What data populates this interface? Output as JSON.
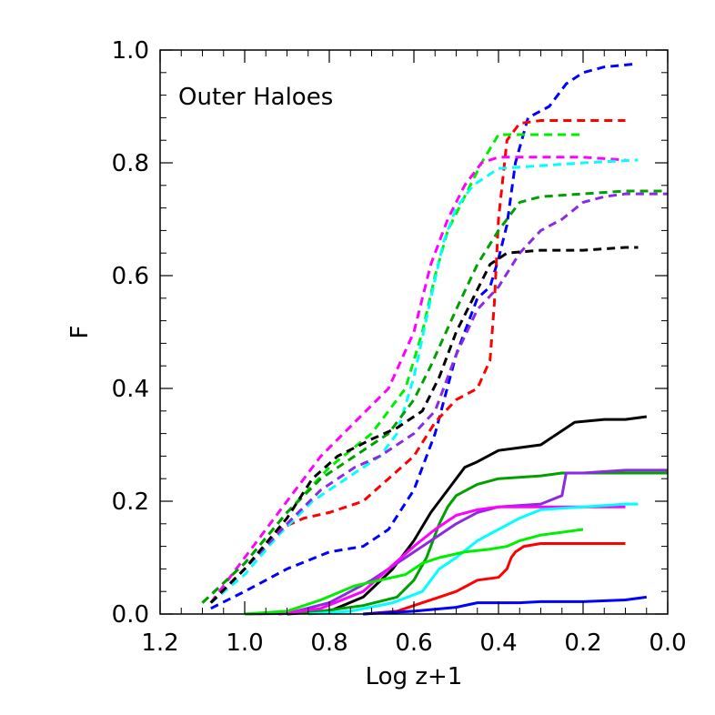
{
  "chart_data": {
    "type": "line",
    "annotation": "Outer Haloes",
    "xlabel": "Log z+1",
    "ylabel": "F",
    "xlim": [
      1.2,
      0.0
    ],
    "ylim": [
      0.0,
      1.0
    ],
    "xticks": [
      "1.2",
      "1.0",
      "0.8",
      "0.6",
      "0.4",
      "0.2",
      "0.0"
    ],
    "yticks": [
      "0.0",
      "0.2",
      "0.4",
      "0.6",
      "0.8",
      "1.0"
    ],
    "series": [
      {
        "name": "blue-dashed",
        "color": "#0000ff",
        "style": "dashed",
        "points": [
          [
            1.08,
            0.01
          ],
          [
            1.0,
            0.04
          ],
          [
            0.9,
            0.08
          ],
          [
            0.8,
            0.11
          ],
          [
            0.72,
            0.12
          ],
          [
            0.66,
            0.15
          ],
          [
            0.6,
            0.22
          ],
          [
            0.55,
            0.32
          ],
          [
            0.5,
            0.46
          ],
          [
            0.45,
            0.56
          ],
          [
            0.42,
            0.58
          ],
          [
            0.4,
            0.63
          ],
          [
            0.38,
            0.69
          ],
          [
            0.36,
            0.8
          ],
          [
            0.33,
            0.88
          ],
          [
            0.28,
            0.9
          ],
          [
            0.24,
            0.94
          ],
          [
            0.2,
            0.96
          ],
          [
            0.15,
            0.97
          ],
          [
            0.08,
            0.975
          ]
        ]
      },
      {
        "name": "red-dashed",
        "color": "#ff0000",
        "style": "dashed",
        "points": [
          [
            1.08,
            0.02
          ],
          [
            1.0,
            0.08
          ],
          [
            0.92,
            0.15
          ],
          [
            0.86,
            0.17
          ],
          [
            0.8,
            0.18
          ],
          [
            0.72,
            0.2
          ],
          [
            0.66,
            0.24
          ],
          [
            0.6,
            0.28
          ],
          [
            0.55,
            0.34
          ],
          [
            0.5,
            0.38
          ],
          [
            0.45,
            0.4
          ],
          [
            0.42,
            0.45
          ],
          [
            0.41,
            0.55
          ],
          [
            0.4,
            0.7
          ],
          [
            0.38,
            0.84
          ],
          [
            0.35,
            0.87
          ],
          [
            0.3,
            0.875
          ],
          [
            0.2,
            0.875
          ],
          [
            0.1,
            0.875
          ]
        ]
      },
      {
        "name": "green-dashed",
        "color": "#00ee00",
        "style": "dashed",
        "points": [
          [
            1.1,
            0.02
          ],
          [
            1.0,
            0.09
          ],
          [
            0.9,
            0.18
          ],
          [
            0.8,
            0.26
          ],
          [
            0.7,
            0.32
          ],
          [
            0.62,
            0.4
          ],
          [
            0.58,
            0.5
          ],
          [
            0.55,
            0.6
          ],
          [
            0.52,
            0.68
          ],
          [
            0.48,
            0.74
          ],
          [
            0.44,
            0.8
          ],
          [
            0.4,
            0.85
          ],
          [
            0.3,
            0.85
          ],
          [
            0.2,
            0.85
          ]
        ]
      },
      {
        "name": "magenta-dashed",
        "color": "#ff00ff",
        "style": "dashed",
        "points": [
          [
            1.08,
            0.02
          ],
          [
            1.0,
            0.1
          ],
          [
            0.9,
            0.2
          ],
          [
            0.82,
            0.28
          ],
          [
            0.74,
            0.34
          ],
          [
            0.66,
            0.4
          ],
          [
            0.6,
            0.5
          ],
          [
            0.56,
            0.62
          ],
          [
            0.52,
            0.7
          ],
          [
            0.48,
            0.76
          ],
          [
            0.44,
            0.8
          ],
          [
            0.4,
            0.81
          ],
          [
            0.3,
            0.81
          ],
          [
            0.2,
            0.81
          ],
          [
            0.1,
            0.805
          ]
        ]
      },
      {
        "name": "cyan-dashed",
        "color": "#00ffff",
        "style": "dashed",
        "points": [
          [
            1.08,
            0.02
          ],
          [
            1.0,
            0.07
          ],
          [
            0.92,
            0.14
          ],
          [
            0.84,
            0.2
          ],
          [
            0.76,
            0.24
          ],
          [
            0.68,
            0.28
          ],
          [
            0.64,
            0.32
          ],
          [
            0.6,
            0.42
          ],
          [
            0.56,
            0.56
          ],
          [
            0.53,
            0.66
          ],
          [
            0.5,
            0.72
          ],
          [
            0.46,
            0.76
          ],
          [
            0.4,
            0.79
          ],
          [
            0.3,
            0.795
          ],
          [
            0.2,
            0.8
          ],
          [
            0.07,
            0.805
          ]
        ]
      },
      {
        "name": "darkgreen-dashed",
        "color": "#00a000",
        "style": "dashed",
        "points": [
          [
            1.1,
            0.02
          ],
          [
            1.0,
            0.09
          ],
          [
            0.9,
            0.18
          ],
          [
            0.82,
            0.24
          ],
          [
            0.74,
            0.28
          ],
          [
            0.66,
            0.32
          ],
          [
            0.6,
            0.38
          ],
          [
            0.56,
            0.44
          ],
          [
            0.5,
            0.54
          ],
          [
            0.45,
            0.62
          ],
          [
            0.4,
            0.68
          ],
          [
            0.35,
            0.73
          ],
          [
            0.3,
            0.74
          ],
          [
            0.2,
            0.745
          ],
          [
            0.1,
            0.75
          ],
          [
            0.0,
            0.75
          ]
        ]
      },
      {
        "name": "purple-dashed",
        "color": "#8a2be2",
        "style": "dashed",
        "points": [
          [
            1.08,
            0.02
          ],
          [
            1.0,
            0.08
          ],
          [
            0.9,
            0.16
          ],
          [
            0.82,
            0.22
          ],
          [
            0.74,
            0.26
          ],
          [
            0.68,
            0.28
          ],
          [
            0.6,
            0.32
          ],
          [
            0.55,
            0.36
          ],
          [
            0.5,
            0.46
          ],
          [
            0.45,
            0.54
          ],
          [
            0.4,
            0.58
          ],
          [
            0.35,
            0.64
          ],
          [
            0.3,
            0.68
          ],
          [
            0.25,
            0.7
          ],
          [
            0.2,
            0.73
          ],
          [
            0.15,
            0.74
          ],
          [
            0.1,
            0.745
          ],
          [
            0.0,
            0.745
          ]
        ]
      },
      {
        "name": "black-dashed",
        "color": "#000000",
        "style": "dashed",
        "points": [
          [
            1.08,
            0.02
          ],
          [
            1.0,
            0.08
          ],
          [
            0.9,
            0.17
          ],
          [
            0.84,
            0.24
          ],
          [
            0.78,
            0.28
          ],
          [
            0.7,
            0.31
          ],
          [
            0.64,
            0.33
          ],
          [
            0.58,
            0.36
          ],
          [
            0.54,
            0.42
          ],
          [
            0.5,
            0.5
          ],
          [
            0.46,
            0.56
          ],
          [
            0.42,
            0.62
          ],
          [
            0.38,
            0.64
          ],
          [
            0.3,
            0.645
          ],
          [
            0.2,
            0.645
          ],
          [
            0.1,
            0.65
          ],
          [
            0.07,
            0.65
          ]
        ]
      },
      {
        "name": "black-solid",
        "color": "#000000",
        "style": "solid",
        "points": [
          [
            0.9,
            0.0
          ],
          [
            0.8,
            0.005
          ],
          [
            0.72,
            0.03
          ],
          [
            0.65,
            0.08
          ],
          [
            0.6,
            0.13
          ],
          [
            0.56,
            0.18
          ],
          [
            0.52,
            0.22
          ],
          [
            0.48,
            0.26
          ],
          [
            0.45,
            0.27
          ],
          [
            0.4,
            0.29
          ],
          [
            0.35,
            0.295
          ],
          [
            0.3,
            0.3
          ],
          [
            0.26,
            0.32
          ],
          [
            0.22,
            0.34
          ],
          [
            0.15,
            0.345
          ],
          [
            0.1,
            0.345
          ],
          [
            0.05,
            0.35
          ]
        ]
      },
      {
        "name": "darkgreen-solid",
        "color": "#00a000",
        "style": "solid",
        "points": [
          [
            0.92,
            0.0
          ],
          [
            0.82,
            0.005
          ],
          [
            0.72,
            0.015
          ],
          [
            0.64,
            0.03
          ],
          [
            0.6,
            0.06
          ],
          [
            0.57,
            0.1
          ],
          [
            0.54,
            0.16
          ],
          [
            0.52,
            0.19
          ],
          [
            0.5,
            0.21
          ],
          [
            0.45,
            0.23
          ],
          [
            0.4,
            0.24
          ],
          [
            0.3,
            0.245
          ],
          [
            0.25,
            0.25
          ],
          [
            0.1,
            0.25
          ],
          [
            0.0,
            0.25
          ]
        ]
      },
      {
        "name": "purple-solid",
        "color": "#8a2be2",
        "style": "solid",
        "points": [
          [
            1.0,
            0.0
          ],
          [
            0.9,
            0.001
          ],
          [
            0.8,
            0.02
          ],
          [
            0.7,
            0.06
          ],
          [
            0.62,
            0.1
          ],
          [
            0.58,
            0.12
          ],
          [
            0.54,
            0.14
          ],
          [
            0.5,
            0.16
          ],
          [
            0.45,
            0.18
          ],
          [
            0.4,
            0.19
          ],
          [
            0.3,
            0.195
          ],
          [
            0.25,
            0.21
          ],
          [
            0.24,
            0.25
          ],
          [
            0.2,
            0.25
          ],
          [
            0.1,
            0.255
          ],
          [
            0.0,
            0.255
          ]
        ]
      },
      {
        "name": "magenta-solid",
        "color": "#ff00ff",
        "style": "solid",
        "points": [
          [
            0.92,
            0.0
          ],
          [
            0.82,
            0.01
          ],
          [
            0.72,
            0.04
          ],
          [
            0.66,
            0.08
          ],
          [
            0.6,
            0.12
          ],
          [
            0.55,
            0.15
          ],
          [
            0.5,
            0.175
          ],
          [
            0.45,
            0.185
          ],
          [
            0.4,
            0.19
          ],
          [
            0.3,
            0.19
          ],
          [
            0.2,
            0.19
          ],
          [
            0.1,
            0.19
          ]
        ]
      },
      {
        "name": "cyan-solid",
        "color": "#00ffff",
        "style": "solid",
        "points": [
          [
            0.85,
            0.0
          ],
          [
            0.75,
            0.005
          ],
          [
            0.65,
            0.02
          ],
          [
            0.58,
            0.04
          ],
          [
            0.54,
            0.08
          ],
          [
            0.5,
            0.1
          ],
          [
            0.45,
            0.13
          ],
          [
            0.4,
            0.15
          ],
          [
            0.35,
            0.17
          ],
          [
            0.3,
            0.185
          ],
          [
            0.2,
            0.19
          ],
          [
            0.1,
            0.195
          ],
          [
            0.07,
            0.195
          ]
        ]
      },
      {
        "name": "green-solid",
        "color": "#00ee00",
        "style": "solid",
        "points": [
          [
            1.0,
            0.0
          ],
          [
            0.9,
            0.005
          ],
          [
            0.82,
            0.025
          ],
          [
            0.74,
            0.05
          ],
          [
            0.68,
            0.06
          ],
          [
            0.62,
            0.07
          ],
          [
            0.58,
            0.09
          ],
          [
            0.54,
            0.1
          ],
          [
            0.48,
            0.11
          ],
          [
            0.42,
            0.115
          ],
          [
            0.38,
            0.12
          ],
          [
            0.35,
            0.13
          ],
          [
            0.3,
            0.14
          ],
          [
            0.25,
            0.145
          ],
          [
            0.2,
            0.15
          ]
        ]
      },
      {
        "name": "red-solid",
        "color": "#ff0000",
        "style": "solid",
        "points": [
          [
            0.72,
            0.0
          ],
          [
            0.64,
            0.005
          ],
          [
            0.58,
            0.02
          ],
          [
            0.54,
            0.03
          ],
          [
            0.5,
            0.04
          ],
          [
            0.45,
            0.06
          ],
          [
            0.4,
            0.065
          ],
          [
            0.38,
            0.08
          ],
          [
            0.37,
            0.1
          ],
          [
            0.36,
            0.11
          ],
          [
            0.34,
            0.12
          ],
          [
            0.3,
            0.125
          ],
          [
            0.2,
            0.125
          ],
          [
            0.1,
            0.125
          ]
        ]
      },
      {
        "name": "blue-solid",
        "color": "#0000ff",
        "style": "solid",
        "points": [
          [
            0.72,
            0.0
          ],
          [
            0.6,
            0.005
          ],
          [
            0.5,
            0.012
          ],
          [
            0.45,
            0.02
          ],
          [
            0.35,
            0.02
          ],
          [
            0.3,
            0.022
          ],
          [
            0.2,
            0.022
          ],
          [
            0.1,
            0.025
          ],
          [
            0.05,
            0.03
          ]
        ]
      }
    ]
  }
}
